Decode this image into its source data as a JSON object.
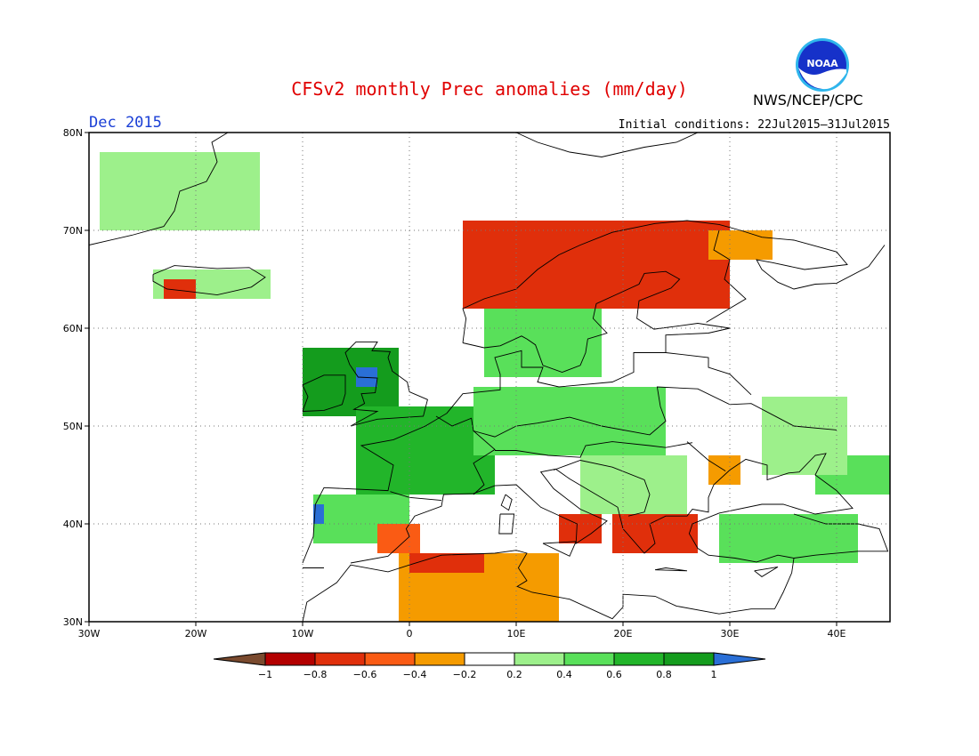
{
  "title": "CFSv2 monthly Prec anomalies (mm/day)",
  "organization": "NWS/NCEP/CPC",
  "logo_text": "NOAA",
  "forecast_month": "Dec 2015",
  "initial_conditions": "Initial conditions: 22Jul2015–31Jul2015",
  "colors": {
    "lt_-1": "#7a4a2e",
    "m1_m08": "#b30000",
    "m08_m06": "#e02f0b",
    "m06_m04": "#fa5b14",
    "m04_m02": "#f59b00",
    "neutral": "#ffffff",
    "p02_p04": "#9df08b",
    "p04_p06": "#59e05a",
    "p06_p08": "#22b52a",
    "p08_p1": "#149c1d",
    "gt_1": "#2a6fd6"
  },
  "chart_data": {
    "type": "heatmap",
    "map_extent": {
      "lon": [
        -30,
        45
      ],
      "lat": [
        30,
        80
      ]
    },
    "lat_ticks": [
      "30N",
      "40N",
      "50N",
      "60N",
      "70N",
      "80N"
    ],
    "lon_ticks": [
      "30W",
      "20W",
      "10W",
      "0",
      "10E",
      "20E",
      "30E",
      "40E"
    ],
    "colorbar": {
      "labels": [
        "−1",
        "−0.8",
        "−0.6",
        "−0.4",
        "−0.2",
        "0.2",
        "0.4",
        "0.6",
        "0.8",
        "1"
      ],
      "boundaries": [
        -1,
        -0.8,
        -0.6,
        -0.4,
        -0.2,
        0.2,
        0.4,
        0.6,
        0.8,
        1
      ]
    },
    "anomaly_regions": [
      {
        "region": "Greenland east coast",
        "lon": [
          -29,
          -14
        ],
        "lat": [
          70,
          78
        ],
        "value": 0.3
      },
      {
        "region": "Iceland",
        "lon": [
          -24,
          -13
        ],
        "lat": [
          63,
          66
        ],
        "value": 0.3
      },
      {
        "region": "Iceland southwest",
        "lon": [
          -23,
          -20
        ],
        "lat": [
          63,
          65
        ],
        "value": -0.7
      },
      {
        "region": "Ireland & UK",
        "lon": [
          -10,
          -1
        ],
        "lat": [
          51,
          58
        ],
        "value": 0.8
      },
      {
        "region": "UK wet spots",
        "lon": [
          -5,
          -3
        ],
        "lat": [
          54,
          56
        ],
        "value": 1.1
      },
      {
        "region": "France & Benelux",
        "lon": [
          -5,
          8
        ],
        "lat": [
          43,
          52
        ],
        "value": 0.7
      },
      {
        "region": "Germany & Poland",
        "lon": [
          6,
          24
        ],
        "lat": [
          47,
          54
        ],
        "value": 0.4
      },
      {
        "region": "Scandinavia south",
        "lon": [
          7,
          18
        ],
        "lat": [
          55,
          62
        ],
        "value": 0.5
      },
      {
        "region": "Norway coast",
        "lon": [
          5,
          30
        ],
        "lat": [
          62,
          71
        ],
        "value": -0.7
      },
      {
        "region": "Kola / NW Russia",
        "lon": [
          28,
          34
        ],
        "lat": [
          67,
          70
        ],
        "value": -0.3
      },
      {
        "region": "Iberia west",
        "lon": [
          -9,
          0
        ],
        "lat": [
          38,
          43
        ],
        "value": 0.4
      },
      {
        "region": "Portugal north",
        "lon": [
          -9,
          -8
        ],
        "lat": [
          40,
          42
        ],
        "value": 1.1
      },
      {
        "region": "Spain southeast",
        "lon": [
          -3,
          1
        ],
        "lat": [
          37,
          40
        ],
        "value": -0.5
      },
      {
        "region": "Algeria & Tunisia",
        "lon": [
          -1,
          14
        ],
        "lat": [
          30,
          37
        ],
        "value": -0.4
      },
      {
        "region": "North Africa coast",
        "lon": [
          0,
          7
        ],
        "lat": [
          35,
          37
        ],
        "value": -0.8
      },
      {
        "region": "Greece & Aegean",
        "lon": [
          19,
          27
        ],
        "lat": [
          37,
          41
        ],
        "value": -0.8
      },
      {
        "region": "South Italy",
        "lon": [
          14,
          18
        ],
        "lat": [
          38,
          41
        ],
        "value": -0.7
      },
      {
        "region": "Black Sea west",
        "lon": [
          28,
          31
        ],
        "lat": [
          44,
          47
        ],
        "value": -0.3
      },
      {
        "region": "Turkey",
        "lon": [
          29,
          42
        ],
        "lat": [
          36,
          41
        ],
        "value": 0.5
      },
      {
        "region": "Caucasus",
        "lon": [
          38,
          45
        ],
        "lat": [
          43,
          47
        ],
        "value": 0.5
      },
      {
        "region": "Ukraine & Russia",
        "lon": [
          33,
          41
        ],
        "lat": [
          45,
          53
        ],
        "value": 0.3
      },
      {
        "region": "Balkans north",
        "lon": [
          16,
          26
        ],
        "lat": [
          41,
          47
        ],
        "value": 0.3
      }
    ]
  }
}
